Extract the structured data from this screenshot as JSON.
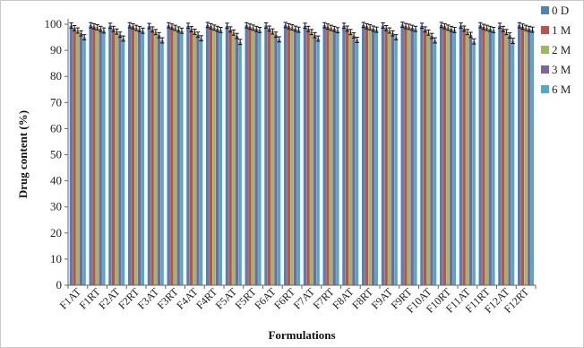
{
  "chart_data": {
    "type": "bar",
    "xlabel": "Formulations",
    "ylabel": "Drug content (%)",
    "ylim": [
      0,
      100
    ],
    "yticks": [
      0,
      10,
      20,
      30,
      40,
      50,
      60,
      70,
      80,
      90,
      100
    ],
    "grid": false,
    "legend_position": "right",
    "categories": [
      "F1AT",
      "F1RT",
      "F2AT",
      "F2RT",
      "F3AT",
      "F3RT",
      "F4AT",
      "F4RT",
      "F5AT",
      "F5RT",
      "F6AT",
      "F6RT",
      "F7AT",
      "F7RT",
      "F8AT",
      "F8RT",
      "F9AT",
      "F9RT",
      "F10AT",
      "F10RT",
      "F11AT",
      "F11RT",
      "F12AT",
      "F12RT"
    ],
    "series": [
      {
        "name": "0 D",
        "color": "#4f81bd",
        "values": [
          99.5,
          99.6,
          99.4,
          99.6,
          99.3,
          99.6,
          99.4,
          99.7,
          99.4,
          99.6,
          99.5,
          99.7,
          99.4,
          99.6,
          99.4,
          99.7,
          99.5,
          99.8,
          99.4,
          99.7,
          99.5,
          99.6,
          99.4,
          99.6
        ]
      },
      {
        "name": "1 M",
        "color": "#c0504d",
        "values": [
          98.5,
          99.2,
          98.2,
          99.2,
          98.0,
          99.1,
          98.1,
          99.2,
          98.0,
          99.1,
          98.3,
          99.2,
          98.2,
          99.1,
          98.3,
          99.2,
          98.5,
          99.3,
          98.0,
          99.2,
          98.3,
          99.0,
          98.2,
          99.1
        ]
      },
      {
        "name": "2 M",
        "color": "#9bbb59",
        "values": [
          97.6,
          98.8,
          97.2,
          98.6,
          97.0,
          98.6,
          97.1,
          98.7,
          96.8,
          98.7,
          97.2,
          98.8,
          97.0,
          98.6,
          97.0,
          98.8,
          97.6,
          99.0,
          96.8,
          98.7,
          97.0,
          98.6,
          97.0,
          98.6
        ]
      },
      {
        "name": "3 M",
        "color": "#8064a2",
        "values": [
          96.5,
          98.2,
          96.0,
          98.1,
          95.8,
          98.0,
          96.0,
          98.2,
          95.5,
          98.2,
          96.0,
          98.3,
          95.8,
          98.2,
          95.7,
          98.3,
          96.5,
          98.6,
          95.5,
          98.2,
          95.9,
          98.2,
          95.7,
          98.2
        ]
      },
      {
        "name": "6 M",
        "color": "#4bacc6",
        "values": [
          95.0,
          97.6,
          94.5,
          97.5,
          93.8,
          97.5,
          94.6,
          97.8,
          93.2,
          97.8,
          94.2,
          97.9,
          94.5,
          97.7,
          94.0,
          97.9,
          95.0,
          98.2,
          93.8,
          97.8,
          93.4,
          97.8,
          93.6,
          97.9
        ]
      }
    ]
  }
}
